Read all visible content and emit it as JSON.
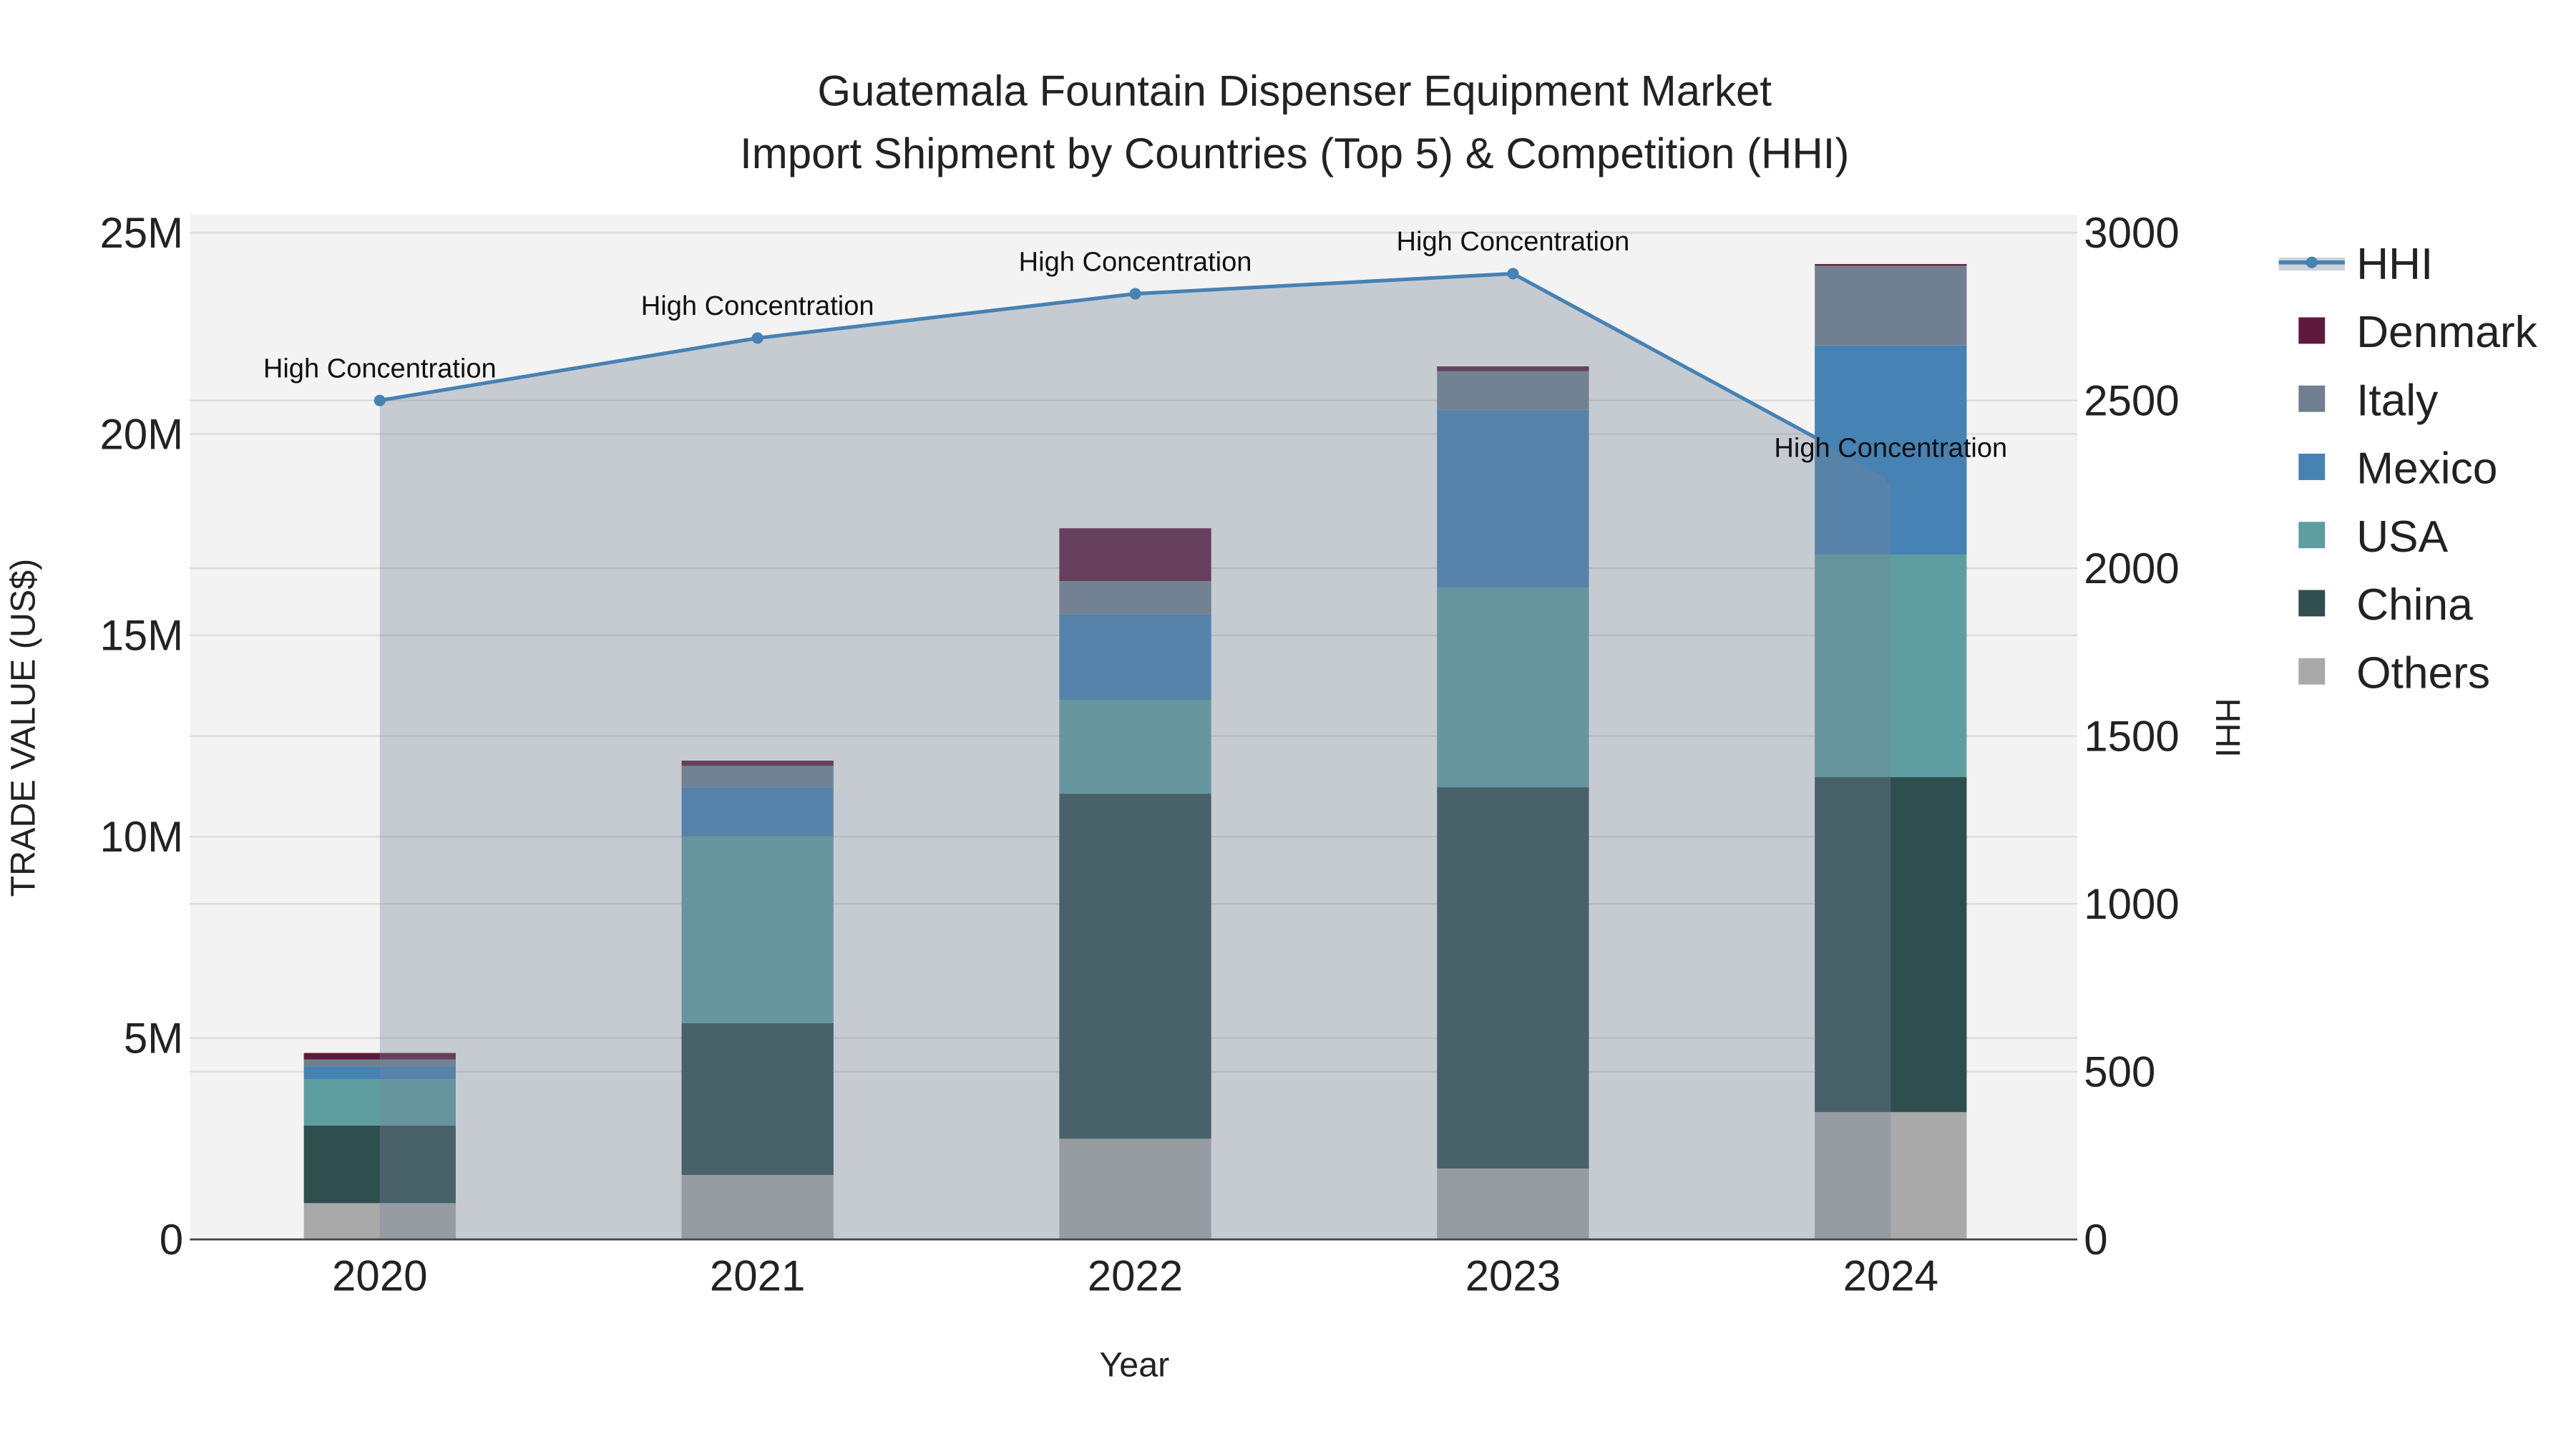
{
  "chart_data": {
    "type": "bar",
    "stacked": true,
    "title": "Guatemala Fountain Dispenser Equipment Market",
    "subtitle": "Import Shipment by Countries (Top 5) & Competition (HHI)",
    "xlabel": "Year",
    "ylabel": "TRADE VALUE (US$)",
    "y2label": "HHI",
    "categories": [
      "2020",
      "2021",
      "2022",
      "2023",
      "2024"
    ],
    "ylim": [
      0,
      25000000
    ],
    "y2lim": [
      0,
      3000
    ],
    "yticks": [
      {
        "v": 0,
        "label": "0"
      },
      {
        "v": 5000000,
        "label": "5M"
      },
      {
        "v": 10000000,
        "label": "10M"
      },
      {
        "v": 15000000,
        "label": "15M"
      },
      {
        "v": 20000000,
        "label": "20M"
      },
      {
        "v": 25000000,
        "label": "25M"
      }
    ],
    "y2ticks": [
      {
        "v": 0,
        "label": "0"
      },
      {
        "v": 500,
        "label": "500"
      },
      {
        "v": 1000,
        "label": "1000"
      },
      {
        "v": 1500,
        "label": "1500"
      },
      {
        "v": 2000,
        "label": "2000"
      },
      {
        "v": 2500,
        "label": "2500"
      },
      {
        "v": 3000,
        "label": "3000"
      }
    ],
    "grid": true,
    "legend_position": "right",
    "series": [
      {
        "name": "Others",
        "color": "#a9a9a9",
        "values": [
          900000,
          1600000,
          2500000,
          1760000,
          3160000
        ]
      },
      {
        "name": "China",
        "color": "#2f4f4f",
        "values": [
          1930000,
          3770000,
          8570000,
          9470000,
          8320000
        ]
      },
      {
        "name": "USA",
        "color": "#5f9ea0",
        "values": [
          1150000,
          4630000,
          2330000,
          4960000,
          5520000
        ]
      },
      {
        "name": "Mexico",
        "color": "#4682b4",
        "values": [
          320000,
          1230000,
          2130000,
          4420000,
          5200000
        ]
      },
      {
        "name": "Italy",
        "color": "#708090",
        "values": [
          170000,
          530000,
          820000,
          950000,
          1980000
        ]
      },
      {
        "name": "Denmark",
        "color": "#5e1a3c",
        "values": [
          160000,
          130000,
          1310000,
          120000,
          40000
        ]
      }
    ],
    "hhi": {
      "name": "HHI",
      "color": "#4682b4",
      "values": [
        2500,
        2686,
        2818,
        2878,
        2268
      ],
      "annotations": [
        "High Concentration",
        "High Concentration",
        "High Concentration",
        "High Concentration",
        "High Concentration"
      ]
    },
    "legend_order": [
      "HHI",
      "Denmark",
      "Italy",
      "Mexico",
      "USA",
      "China",
      "Others"
    ]
  }
}
